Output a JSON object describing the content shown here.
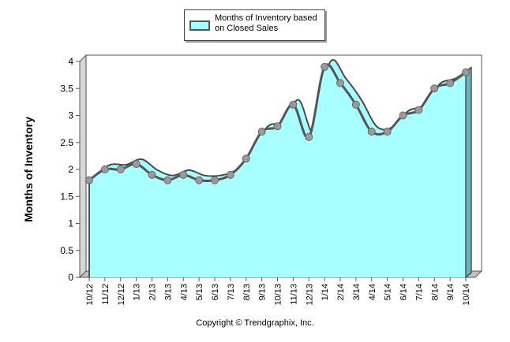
{
  "chart_data": {
    "type": "area",
    "title": "",
    "xlabel": "",
    "ylabel": "Months of Inventory",
    "ylim": [
      0,
      4
    ],
    "yticks": [
      "0",
      "0.5",
      "1",
      "1.5",
      "2",
      "2.5",
      "3",
      "3.5",
      "4"
    ],
    "ytick_values": [
      0,
      0.5,
      1,
      1.5,
      2,
      2.5,
      3,
      3.5,
      4
    ],
    "grid": false,
    "legend_position": "top-center",
    "categories": [
      "10/12",
      "11/12",
      "12/12",
      "1/13",
      "2/13",
      "3/13",
      "4/13",
      "5/13",
      "6/13",
      "7/13",
      "8/13",
      "9/13",
      "10/13",
      "11/13",
      "12/13",
      "1/14",
      "2/14",
      "3/14",
      "4/14",
      "5/14",
      "6/14",
      "7/14",
      "8/14",
      "9/14",
      "10/14"
    ],
    "series": [
      {
        "name": "Months of Inventory based on Closed Sales",
        "color": "#a8ffff",
        "line_color": "#555555",
        "marker_color": "#9a9a9a",
        "values": [
          1.8,
          2.0,
          2.0,
          2.1,
          1.9,
          1.8,
          1.9,
          1.8,
          1.8,
          1.9,
          2.2,
          2.7,
          2.8,
          3.2,
          2.6,
          3.9,
          3.6,
          3.2,
          2.7,
          2.7,
          3.0,
          3.1,
          3.5,
          3.6,
          3.8
        ]
      }
    ]
  },
  "legend": {
    "label_line1": "Months of Inventory based",
    "label_line2": "on Closed Sales"
  },
  "footer": {
    "copyright": "Copyright © Trendgraphix, Inc."
  }
}
